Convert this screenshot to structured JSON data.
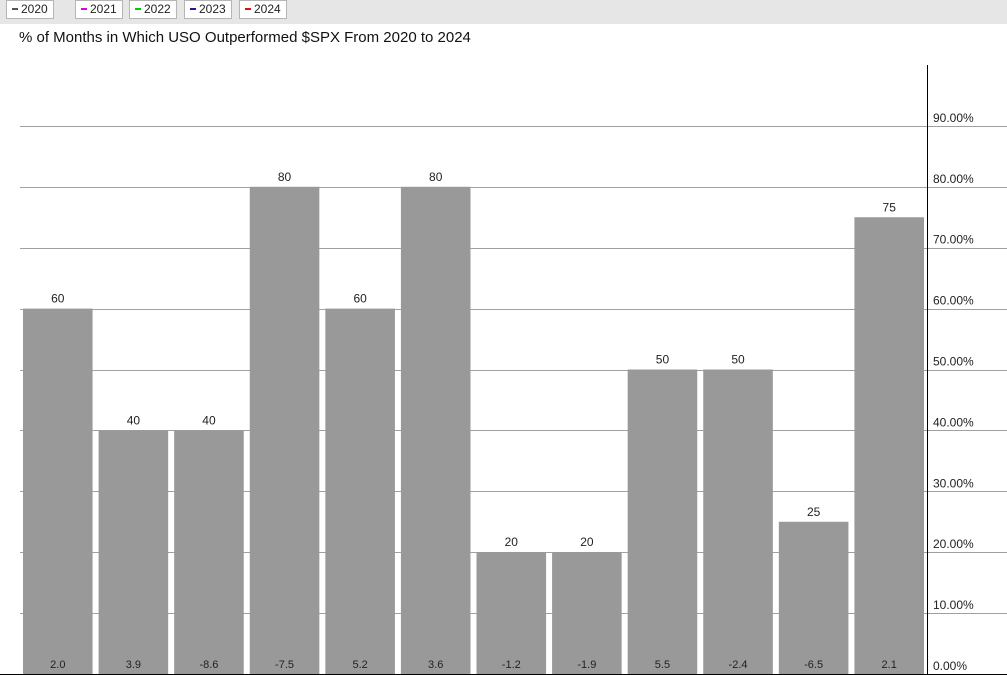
{
  "legend": {
    "items": [
      {
        "label": "2020",
        "color": "#555555"
      },
      {
        "label": "2021",
        "color": "#e000e0"
      },
      {
        "label": "2022",
        "color": "#00cc00"
      },
      {
        "label": "2023",
        "color": "#1a1aa6"
      },
      {
        "label": "2024",
        "color": "#e01010"
      }
    ]
  },
  "chart_data": {
    "type": "bar",
    "title": "% of Months in Which USO Outperformed $SPX From 2020 to 2024",
    "xlabel": "",
    "ylabel": "",
    "categories": [
      "",
      "",
      "",
      "",
      "",
      "",
      "",
      "",
      "",
      "",
      "",
      ""
    ],
    "values": [
      60,
      40,
      40,
      80,
      60,
      80,
      20,
      20,
      50,
      50,
      25,
      75
    ],
    "value_labels": [
      "60",
      "40",
      "40",
      "80",
      "60",
      "80",
      "20",
      "20",
      "50",
      "50",
      "25",
      "75"
    ],
    "bottom_labels": [
      "2.0",
      "3.9",
      "-8.6",
      "-7.5",
      "5.2",
      "3.6",
      "-1.2",
      "-1.9",
      "5.5",
      "-2.4",
      "-6.5",
      "2.1"
    ],
    "ylim": [
      0,
      100
    ],
    "yticks": [
      0,
      10,
      20,
      30,
      40,
      50,
      60,
      70,
      80,
      90
    ],
    "ytick_labels": [
      "0.00%",
      "10.00%",
      "20.00%",
      "30.00%",
      "40.00%",
      "50.00%",
      "60.00%",
      "70.00%",
      "80.00%",
      "90.00%"
    ],
    "yaxis_position": "right",
    "grid": true,
    "bar_color": "#999999",
    "grid_color": "#a0a0a0"
  }
}
